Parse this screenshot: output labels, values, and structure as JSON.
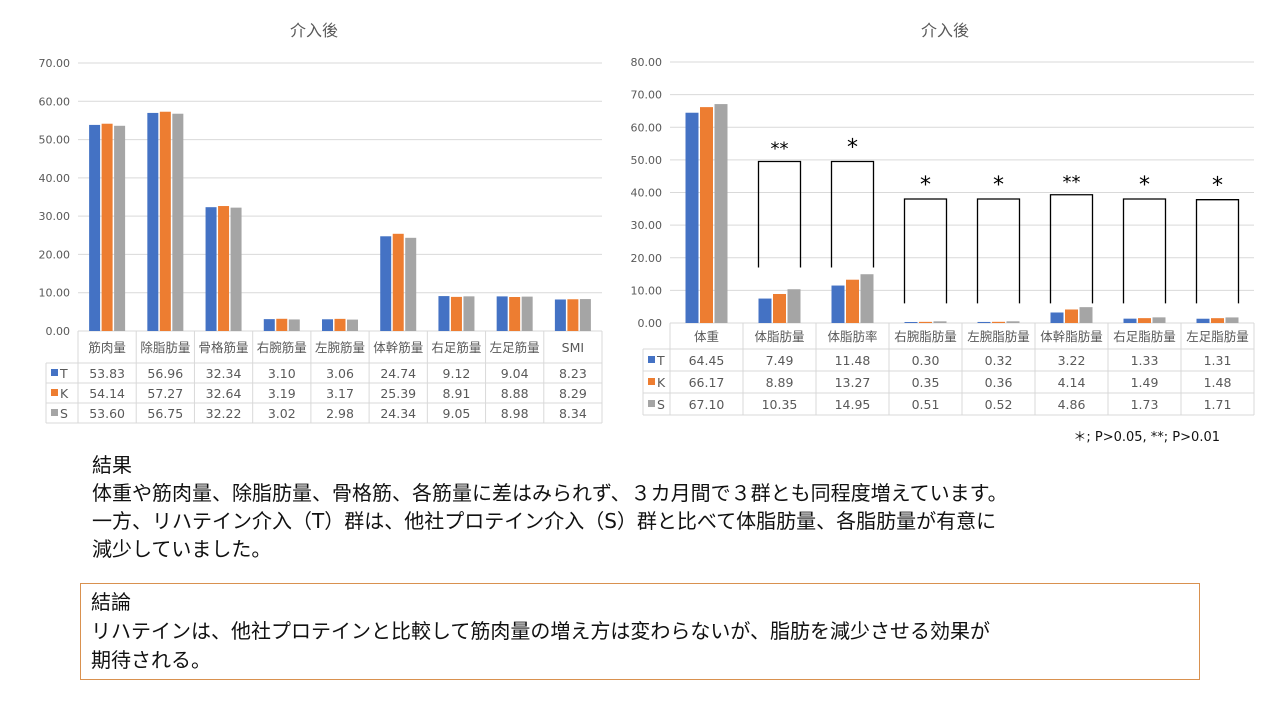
{
  "chart_data": [
    {
      "type": "bar",
      "title": "介入後",
      "categories": [
        "筋肉量",
        "除脂肪量",
        "骨格筋量",
        "右腕筋量",
        "左腕筋量",
        "体幹筋量",
        "右足筋量",
        "左足筋量",
        "SMI"
      ],
      "series": [
        {
          "name": "T",
          "color": "#4472c4",
          "values": [
            53.83,
            56.96,
            32.34,
            3.1,
            3.06,
            24.74,
            9.12,
            9.04,
            8.23
          ],
          "labels": [
            "53.83",
            "56.96",
            "32.34",
            "3.10",
            "3.06",
            "24.74",
            "9.12",
            "9.04",
            "8.23"
          ]
        },
        {
          "name": "K",
          "color": "#ed7d31",
          "values": [
            54.14,
            57.27,
            32.64,
            3.19,
            3.17,
            25.39,
            8.91,
            8.88,
            8.29
          ],
          "labels": [
            "54.14",
            "57.27",
            "32.64",
            "3.19",
            "3.17",
            "25.39",
            "8.91",
            "8.88",
            "8.29"
          ]
        },
        {
          "name": "S",
          "color": "#a5a5a5",
          "values": [
            53.6,
            56.75,
            32.22,
            3.02,
            2.98,
            24.34,
            9.05,
            8.98,
            8.34
          ],
          "labels": [
            "53.60",
            "56.75",
            "32.22",
            "3.02",
            "2.98",
            "24.34",
            "9.05",
            "8.98",
            "8.34"
          ]
        }
      ],
      "ylim": [
        0,
        70
      ],
      "yticks": [
        "0.00",
        "10.00",
        "20.00",
        "30.00",
        "40.00",
        "50.00",
        "60.00",
        "70.00"
      ],
      "grid": true,
      "legend": "data-table"
    },
    {
      "type": "bar",
      "title": "介入後",
      "categories": [
        "体重",
        "体脂肪量",
        "体脂肪率",
        "右腕脂肪量",
        "左腕脂肪量",
        "体幹脂肪量",
        "右足脂肪量",
        "左足脂肪量"
      ],
      "series": [
        {
          "name": "T",
          "color": "#4472c4",
          "values": [
            64.45,
            7.49,
            11.48,
            0.3,
            0.32,
            3.22,
            1.33,
            1.31
          ],
          "labels": [
            "64.45",
            "7.49",
            "11.48",
            "0.30",
            "0.32",
            "3.22",
            "1.33",
            "1.31"
          ]
        },
        {
          "name": "K",
          "color": "#ed7d31",
          "values": [
            66.17,
            8.89,
            13.27,
            0.35,
            0.36,
            4.14,
            1.49,
            1.48
          ],
          "labels": [
            "66.17",
            "8.89",
            "13.27",
            "0.35",
            "0.36",
            "4.14",
            "1.49",
            "1.48"
          ]
        },
        {
          "name": "S",
          "color": "#a5a5a5",
          "values": [
            67.1,
            10.35,
            14.95,
            0.51,
            0.52,
            4.86,
            1.73,
            1.71
          ],
          "labels": [
            "67.10",
            "10.35",
            "14.95",
            "0.51",
            "0.52",
            "4.86",
            "1.73",
            "1.71"
          ]
        }
      ],
      "ylim": [
        0,
        80
      ],
      "yticks": [
        "0.00",
        "10.00",
        "20.00",
        "30.00",
        "40.00",
        "50.00",
        "60.00",
        "70.00",
        "80.00"
      ],
      "grid": true,
      "legend": "data-table",
      "significance": [
        {
          "category_index": 1,
          "label": "**",
          "top": 49.5,
          "bottom": 17
        },
        {
          "category_index": 2,
          "label": "*",
          "top": 49.5,
          "bottom": 17
        },
        {
          "category_index": 3,
          "label": "*",
          "top": 38,
          "bottom": 6
        },
        {
          "category_index": 4,
          "label": "*",
          "top": 38,
          "bottom": 6
        },
        {
          "category_index": 5,
          "label": "**",
          "top": 39.3,
          "bottom": 6
        },
        {
          "category_index": 6,
          "label": "*",
          "top": 38,
          "bottom": 6
        },
        {
          "category_index": 7,
          "label": "*",
          "top": 37.8,
          "bottom": 6
        }
      ],
      "footnote": "＊; P>0.05, **; P>0.01"
    }
  ],
  "results": {
    "heading": "結果",
    "lines": [
      "体重や筋肉量、除脂肪量、骨格筋、各筋量に差はみられず、３カ月間で３群とも同程度増えています。",
      "一方、リハテイン介入（T）群は、他社プロテイン介入（S）群と比べて体脂肪量、各脂肪量が有意に",
      "減少していました。"
    ]
  },
  "conclusion": {
    "heading": "結論",
    "lines": [
      "リハテインは、他社プロテインと比較して筋肉量の増え方は変わらないが、脂肪を減少させる効果が",
      "期待される。"
    ]
  }
}
